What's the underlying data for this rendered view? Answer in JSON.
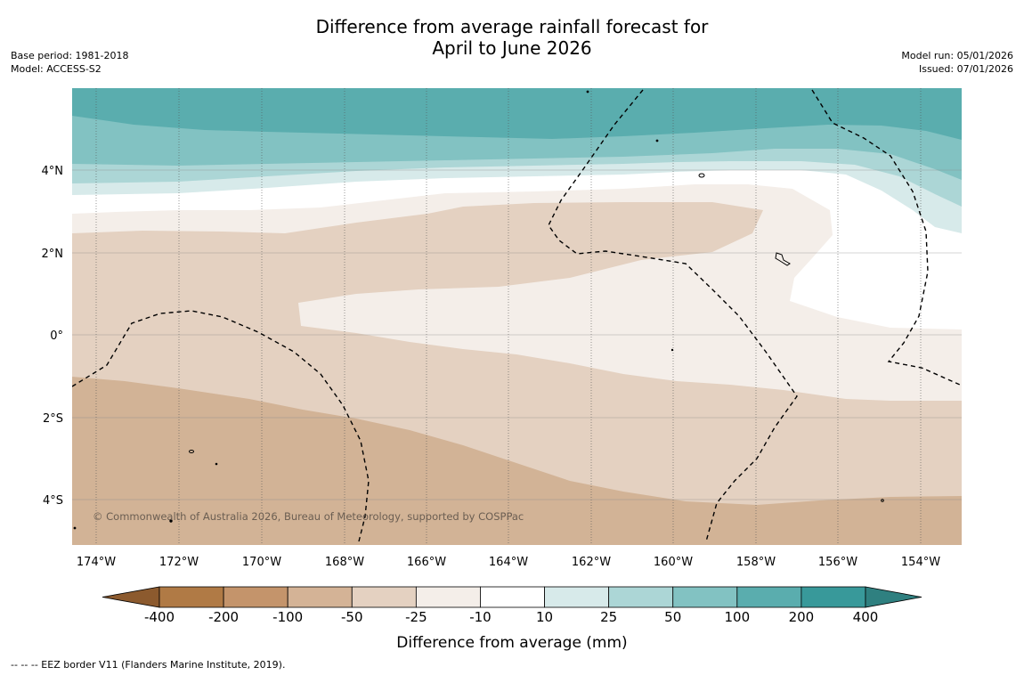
{
  "title": {
    "line1": "Difference from average rainfall forecast for",
    "line2": "April to June 2026"
  },
  "meta": {
    "base_period": "Base period: 1981-2018",
    "model": "Model: ACCESS-S2",
    "model_run": "Model run: 05/01/2026",
    "issued": "Issued: 07/01/2026"
  },
  "map": {
    "lat_labels": [
      "4°N",
      "2°N",
      "0°",
      "2°S",
      "4°S"
    ],
    "lon_labels": [
      "174°W",
      "172°W",
      "170°W",
      "168°W",
      "166°W",
      "164°W",
      "162°W",
      "160°W",
      "158°W",
      "156°W",
      "154°W"
    ],
    "copyright": "© Commonwealth of Australia 2026, Bureau of Meteorology, supported by COSPPac",
    "region_categories": [
      "100 to 200",
      "50 to 100",
      "25 to 50",
      "10 to 25",
      "-10 to 10",
      "-25 to -10",
      "-50 to -25",
      "-100 to -50"
    ]
  },
  "colorbar": {
    "ticks": [
      "-400",
      "-200",
      "-100",
      "-50",
      "-25",
      "-10",
      "10",
      "25",
      "50",
      "100",
      "200",
      "400"
    ],
    "colors": [
      "#8c5a2e",
      "#b07a45",
      "#c4946b",
      "#d4b396",
      "#e4d1c1",
      "#f4eee9",
      "#ffffff",
      "#d7eaea",
      "#acd6d6",
      "#82c2c2",
      "#5aadae",
      "#38999a",
      "#2f8080"
    ],
    "label": "Difference from average (mm)"
  },
  "footer": "--  --  -- EEZ border V11 (Flanders Marine Institute, 2019)."
}
